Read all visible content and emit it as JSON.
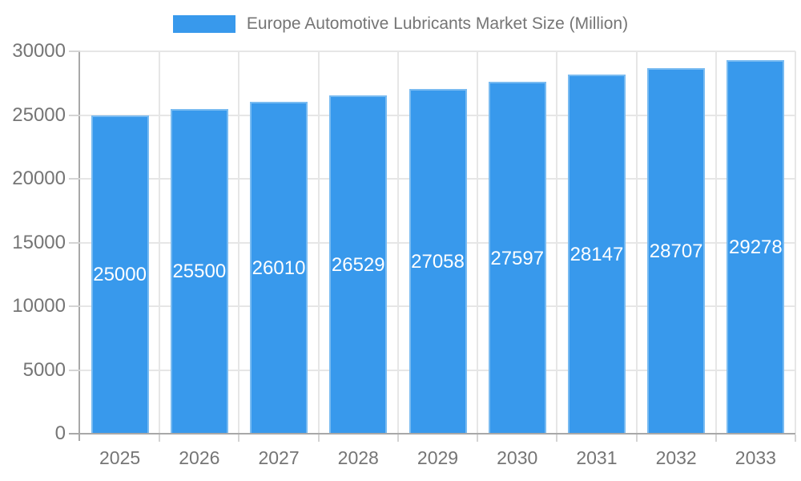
{
  "chart_data": {
    "type": "bar",
    "title": "Europe Automotive Lubricants Market Size (Million)",
    "categories": [
      "2025",
      "2026",
      "2027",
      "2028",
      "2029",
      "2030",
      "2031",
      "2032",
      "2033"
    ],
    "values": [
      25000,
      25500,
      26010,
      26529,
      27058,
      27597,
      28147,
      28707,
      29278
    ],
    "xlabel": "",
    "ylabel": "",
    "ylim": [
      0,
      30000
    ],
    "y_ticks": [
      0,
      5000,
      10000,
      15000,
      20000,
      25000,
      30000
    ],
    "legend_position": "top",
    "grid": true,
    "colors": {
      "bar": "#3899ec",
      "bar_border": "#79bbf1",
      "bar_label": "#ffffff",
      "grid": "#e6e6e6",
      "tick": "#d4d4d4",
      "axis": "#a8a8a8",
      "text": "#757575",
      "background": "#ffffff"
    }
  }
}
